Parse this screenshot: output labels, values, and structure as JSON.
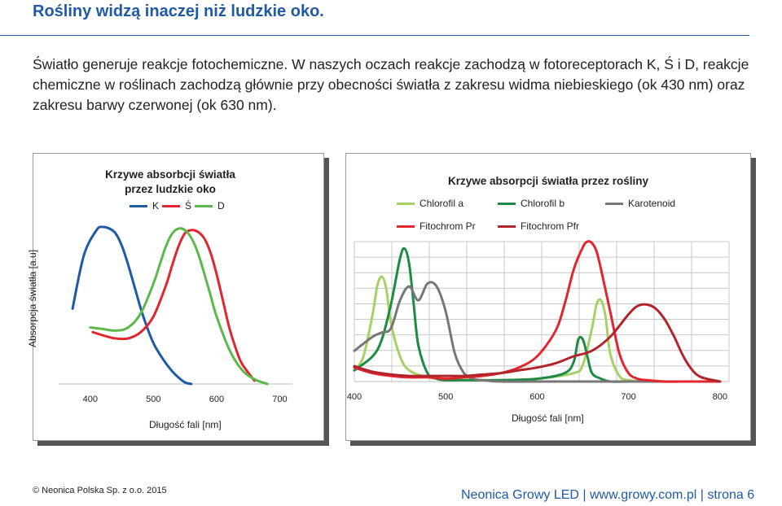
{
  "page": {
    "title": "Rośliny widzą inaczej niż ludzkie oko.",
    "intro": "Światło generuje reakcje fotochemiczne. W naszych oczach reakcje zachodzą w fotoreceptorach K, Ś i D, reakcje chemiczne w roślinach zachodzą głównie przy obecności światła z zakresu widma niebieskiego (ok 430 nm) oraz zakresu barwy czerwonej (ok 630 nm).",
    "copyright": "© Neonica Polska Sp. z o.o. 2015",
    "footer": "Neonica Growy LED | www.growy.com.pl | strona 6"
  },
  "chart_data": [
    {
      "type": "line",
      "title": "Krzywe absorbcji światła przez ludzkie oko",
      "title_line1": "Krzywe absorbcji światła",
      "title_line2": "przez ludzkie oko",
      "xlabel": "Długość fali [nm]",
      "ylabel": "Absorpcja światła [a.u]",
      "xlim": [
        350,
        720
      ],
      "ylim": [
        0,
        1
      ],
      "xticks": [
        "400",
        "500",
        "600",
        "700"
      ],
      "grid": false,
      "legend": "top",
      "series": [
        {
          "name": "K",
          "color": "#1f5aa6",
          "x": [
            372,
            390,
            410,
            420,
            430,
            440,
            450,
            460,
            470,
            480,
            490,
            500,
            510,
            520,
            530,
            540,
            550,
            560
          ],
          "y": [
            0.48,
            0.82,
            0.98,
            1.0,
            0.99,
            0.96,
            0.88,
            0.76,
            0.62,
            0.48,
            0.36,
            0.26,
            0.19,
            0.13,
            0.08,
            0.04,
            0.01,
            0.0
          ]
        },
        {
          "name": "Ś",
          "color": "#e2262f",
          "x": [
            404,
            420,
            440,
            460,
            480,
            500,
            520,
            530,
            540,
            550,
            560,
            570,
            580,
            590,
            600,
            610,
            620,
            630,
            640,
            660
          ],
          "y": [
            0.33,
            0.31,
            0.29,
            0.29,
            0.33,
            0.43,
            0.63,
            0.76,
            0.88,
            0.96,
            0.98,
            0.97,
            0.93,
            0.84,
            0.7,
            0.53,
            0.36,
            0.23,
            0.13,
            0.02
          ]
        },
        {
          "name": "D",
          "color": "#5cb84a",
          "x": [
            400,
            420,
            440,
            460,
            480,
            500,
            510,
            520,
            530,
            540,
            550,
            560,
            570,
            580,
            590,
            600,
            620,
            640,
            660,
            680
          ],
          "y": [
            0.36,
            0.35,
            0.34,
            0.36,
            0.45,
            0.64,
            0.76,
            0.88,
            0.96,
            0.99,
            0.98,
            0.93,
            0.84,
            0.71,
            0.57,
            0.43,
            0.22,
            0.09,
            0.03,
            0.0
          ]
        }
      ]
    },
    {
      "type": "line",
      "title": "Krzywe absorpcji światła przez rośliny",
      "xlabel": "Długość fali [nm]",
      "xlim": [
        400,
        810
      ],
      "ylim": [
        0,
        1
      ],
      "xticks": [
        "400",
        "500",
        "600",
        "700",
        "800"
      ],
      "grid": true,
      "legend": "top",
      "series": [
        {
          "name": "Chlorofil a",
          "color": "#a6d165",
          "x": [
            400,
            410,
            420,
            425,
            430,
            435,
            440,
            450,
            460,
            480,
            500,
            520,
            560,
            600,
            640,
            650,
            660,
            665,
            670,
            675,
            680,
            690,
            700,
            720,
            760,
            800
          ],
          "y": [
            0.08,
            0.18,
            0.48,
            0.68,
            0.75,
            0.66,
            0.42,
            0.18,
            0.08,
            0.03,
            0.02,
            0.01,
            0.01,
            0.02,
            0.06,
            0.12,
            0.38,
            0.55,
            0.58,
            0.46,
            0.2,
            0.04,
            0.01,
            0.0,
            0.0,
            0.0
          ]
        },
        {
          "name": "Chlorofil b",
          "color": "#1e8a43",
          "x": [
            400,
            420,
            430,
            440,
            450,
            455,
            460,
            465,
            470,
            480,
            490,
            500,
            520,
            560,
            600,
            630,
            640,
            645,
            650,
            655,
            660,
            670,
            680,
            700,
            760,
            800
          ],
          "y": [
            0.08,
            0.18,
            0.3,
            0.55,
            0.88,
            0.95,
            0.84,
            0.55,
            0.26,
            0.06,
            0.02,
            0.01,
            0.01,
            0.01,
            0.02,
            0.06,
            0.14,
            0.3,
            0.3,
            0.18,
            0.06,
            0.02,
            0.0,
            0.0,
            0.0,
            0.0
          ]
        },
        {
          "name": "Karotenoid",
          "color": "#777777",
          "x": [
            400,
            420,
            430,
            440,
            450,
            460,
            470,
            480,
            490,
            500,
            510,
            520,
            530,
            540,
            560,
            600,
            700,
            800
          ],
          "y": [
            0.22,
            0.32,
            0.35,
            0.38,
            0.58,
            0.68,
            0.58,
            0.7,
            0.68,
            0.5,
            0.2,
            0.06,
            0.02,
            0.01,
            0.0,
            0.0,
            0.0,
            0.0
          ]
        },
        {
          "name": "Fitochrom Pr",
          "color": "#e2262f",
          "x": [
            400,
            420,
            440,
            460,
            480,
            500,
            520,
            540,
            560,
            580,
            600,
            620,
            630,
            640,
            650,
            655,
            660,
            665,
            670,
            680,
            690,
            700,
            710,
            720,
            740,
            760,
            800
          ],
          "y": [
            0.1,
            0.06,
            0.04,
            0.03,
            0.03,
            0.02,
            0.03,
            0.04,
            0.06,
            0.1,
            0.18,
            0.36,
            0.55,
            0.8,
            0.96,
            1.0,
            0.99,
            0.93,
            0.8,
            0.5,
            0.2,
            0.06,
            0.02,
            0.01,
            0.0,
            0.0,
            0.0
          ]
        },
        {
          "name": "Fitochrom Pfr",
          "color": "#b0242a",
          "x": [
            400,
            420,
            440,
            460,
            480,
            500,
            520,
            540,
            560,
            580,
            600,
            620,
            640,
            660,
            680,
            700,
            710,
            720,
            730,
            740,
            750,
            760,
            770,
            780,
            800
          ],
          "y": [
            0.11,
            0.07,
            0.05,
            0.04,
            0.04,
            0.04,
            0.04,
            0.05,
            0.06,
            0.08,
            0.1,
            0.13,
            0.18,
            0.22,
            0.32,
            0.48,
            0.54,
            0.55,
            0.52,
            0.44,
            0.32,
            0.18,
            0.08,
            0.03,
            0.0
          ]
        }
      ]
    }
  ]
}
